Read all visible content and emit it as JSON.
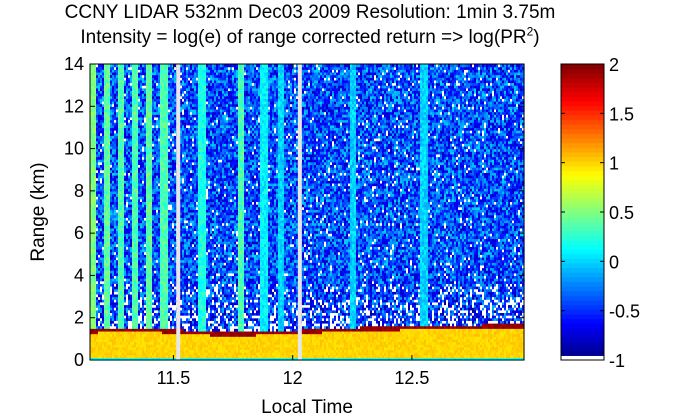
{
  "chart_data": {
    "type": "heatmap",
    "title": "CCNY LIDAR 532nm Dec03 2009 Resolution: 1min 3.75m",
    "subtitle_prefix": "Intensity = log(e) of range corrected return => log(PR",
    "subtitle_sup": "2",
    "subtitle_suffix": ")",
    "xlabel": "Local Time",
    "ylabel": "Range (km)",
    "xlim": [
      11.15,
      12.97
    ],
    "ylim": [
      0,
      14
    ],
    "x_ticks": [
      11.5,
      12,
      12.5
    ],
    "x_tick_labels": [
      "11.5",
      "12",
      "12.5"
    ],
    "y_ticks": [
      0,
      2,
      4,
      6,
      8,
      10,
      12,
      14
    ],
    "y_tick_labels": [
      "0",
      "2",
      "4",
      "6",
      "8",
      "10",
      "12",
      "14"
    ],
    "colorbar": {
      "range": [
        -1,
        2
      ],
      "ticks": [
        -1,
        -0.5,
        0,
        0.5,
        1,
        1.5,
        2
      ],
      "tick_labels": [
        "-1",
        "-0.5",
        "0",
        "0.5",
        "1",
        "1.5",
        "2"
      ],
      "colormap": "jet"
    },
    "data_gaps_time": [
      11.52,
      12.03
    ],
    "boundary_layer_top_km": [
      {
        "t": 11.15,
        "z": 1.35
      },
      {
        "t": 11.3,
        "z": 1.4
      },
      {
        "t": 11.5,
        "z": 1.35
      },
      {
        "t": 11.7,
        "z": 1.2
      },
      {
        "t": 11.9,
        "z": 1.25
      },
      {
        "t": 12.1,
        "z": 1.35
      },
      {
        "t": 12.3,
        "z": 1.45
      },
      {
        "t": 12.5,
        "z": 1.5
      },
      {
        "t": 12.7,
        "z": 1.55
      },
      {
        "t": 12.97,
        "z": 1.6
      }
    ],
    "near_surface_value": 1.0,
    "free_troposphere_value": -0.4,
    "aerosol_plumes": [
      {
        "t": 11.16,
        "value": 0.5
      },
      {
        "t": 11.22,
        "value": 0.4
      },
      {
        "t": 11.28,
        "value": 0.35
      },
      {
        "t": 11.34,
        "value": 0.35
      },
      {
        "t": 11.4,
        "value": 0.4
      },
      {
        "t": 11.46,
        "value": 0.35
      },
      {
        "t": 11.62,
        "value": 0.2
      },
      {
        "t": 11.78,
        "value": 0.35
      },
      {
        "t": 11.88,
        "value": 0.1
      },
      {
        "t": 11.95,
        "value": 0.0
      },
      {
        "t": 12.25,
        "value": 0.0
      },
      {
        "t": 12.55,
        "value": 0.0
      }
    ]
  }
}
